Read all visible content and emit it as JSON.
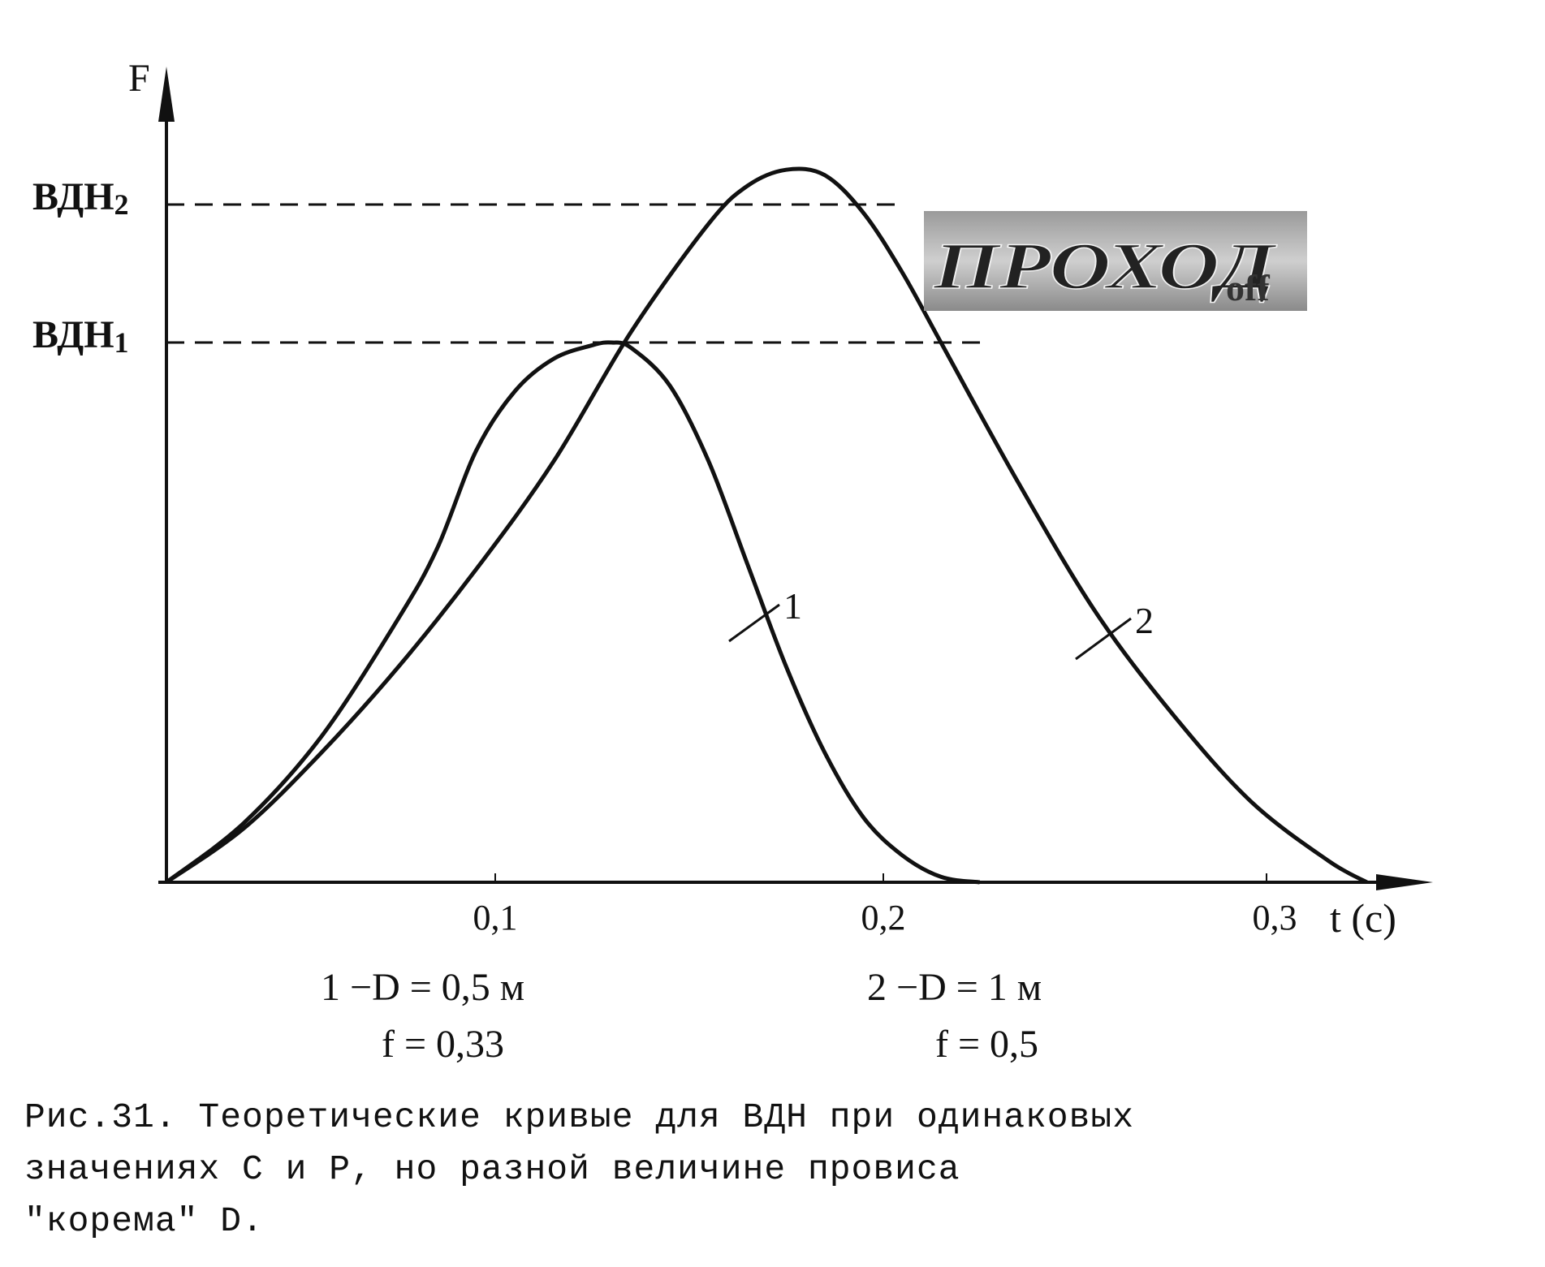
{
  "chart_data": {
    "type": "line",
    "ylabel": "F",
    "xlabel": "t (c)",
    "xlim": [
      0,
      0.33
    ],
    "x_ticks": [
      "0,1",
      "0,2",
      "0,3"
    ],
    "x_tick_values": [
      0.1,
      0.2,
      0.3
    ],
    "y_ticks": [
      "ВДН",
      "ВДН"
    ],
    "y_tick_subscripts": [
      "2",
      "1"
    ],
    "y_tick_values": [
      2,
      1
    ],
    "series": [
      {
        "name": "1",
        "x": [
          0,
          0.02,
          0.04,
          0.06,
          0.07,
          0.08,
          0.09,
          0.1,
          0.11,
          0.115,
          0.12,
          0.13,
          0.14,
          0.15,
          0.16,
          0.17,
          0.18,
          0.19,
          0.2,
          0.21
        ],
        "values": [
          0,
          0.11,
          0.27,
          0.49,
          0.62,
          0.8,
          0.91,
          0.97,
          0.995,
          1.0,
          0.99,
          0.92,
          0.78,
          0.59,
          0.4,
          0.24,
          0.12,
          0.05,
          0.01,
          0
        ]
      },
      {
        "name": "2",
        "x": [
          0,
          0.02,
          0.04,
          0.06,
          0.08,
          0.1,
          0.12,
          0.14,
          0.15,
          0.16,
          0.17,
          0.18,
          0.19,
          0.2,
          0.22,
          0.24,
          0.26,
          0.28,
          0.3,
          0.31
        ],
        "values": [
          0,
          0.1,
          0.24,
          0.4,
          0.58,
          0.78,
          1.02,
          1.22,
          1.29,
          1.32,
          1.31,
          1.24,
          1.13,
          1.0,
          0.74,
          0.5,
          0.31,
          0.15,
          0.04,
          0
        ]
      }
    ],
    "legend_lines": [
      [
        "1 −D = 0,5 м",
        "f = 0,33"
      ],
      [
        "2 −D = 1 м",
        "f = 0,5"
      ]
    ],
    "grid": false
  },
  "watermark": {
    "text": "ПРОХОД",
    "suffix": "off"
  },
  "caption": {
    "lines": [
      "Рис.31. Теоретические кривые для ВДН при одинаковых",
      "значениях С и Р, но разной величине провиса",
      "\"корема\" D."
    ]
  }
}
